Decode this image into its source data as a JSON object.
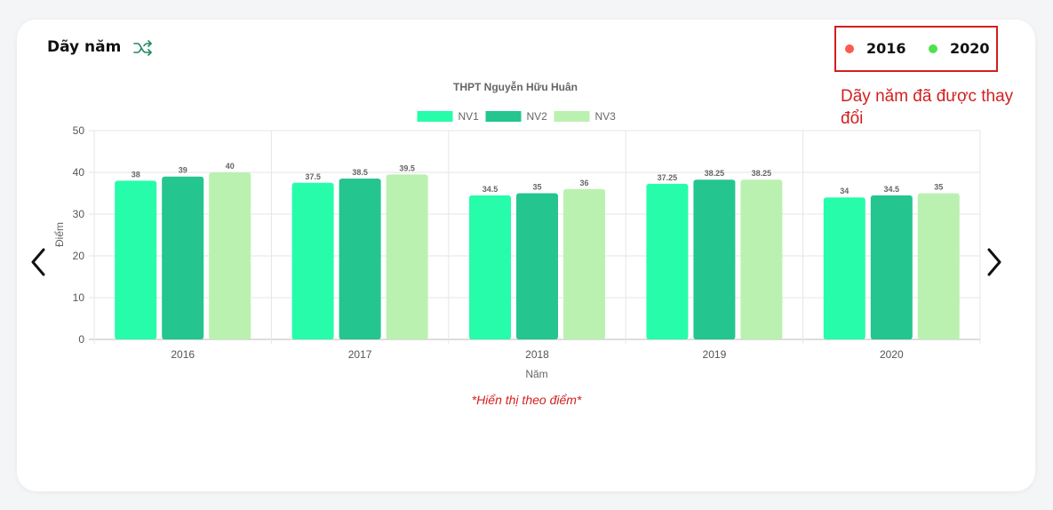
{
  "header": {
    "title": "Dãy năm",
    "shuffle_icon": "shuffle-icon"
  },
  "year_selector": {
    "items": [
      {
        "label": "2016",
        "color": "#ff5a4e"
      },
      {
        "label": "2020",
        "color": "#4de34d"
      }
    ]
  },
  "annotation": {
    "text": "Dãy năm đã được thay đổi"
  },
  "navigation": {
    "prev_icon": "chevron-left-icon",
    "next_icon": "chevron-right-icon"
  },
  "footer_note": "*Hiển thị theo điểm*",
  "chart_data": {
    "type": "bar",
    "title": "THPT Nguyễn Hữu Huân",
    "xlabel": "Năm",
    "ylabel": "Điểm",
    "ylim": [
      0,
      50
    ],
    "yticks": [
      0,
      10,
      20,
      30,
      40,
      50
    ],
    "grid": true,
    "legend_position": "top-center",
    "categories": [
      "2016",
      "2017",
      "2018",
      "2019",
      "2020"
    ],
    "series": [
      {
        "name": "NV1",
        "color": "#27fcaa",
        "values": [
          38,
          37.5,
          34.5,
          37.25,
          34
        ]
      },
      {
        "name": "NV2",
        "color": "#24c58e",
        "values": [
          39,
          38.5,
          35,
          38.25,
          34.5
        ]
      },
      {
        "name": "NV3",
        "color": "#bbf1b0",
        "values": [
          40,
          39.5,
          36,
          38.25,
          35
        ]
      }
    ]
  }
}
